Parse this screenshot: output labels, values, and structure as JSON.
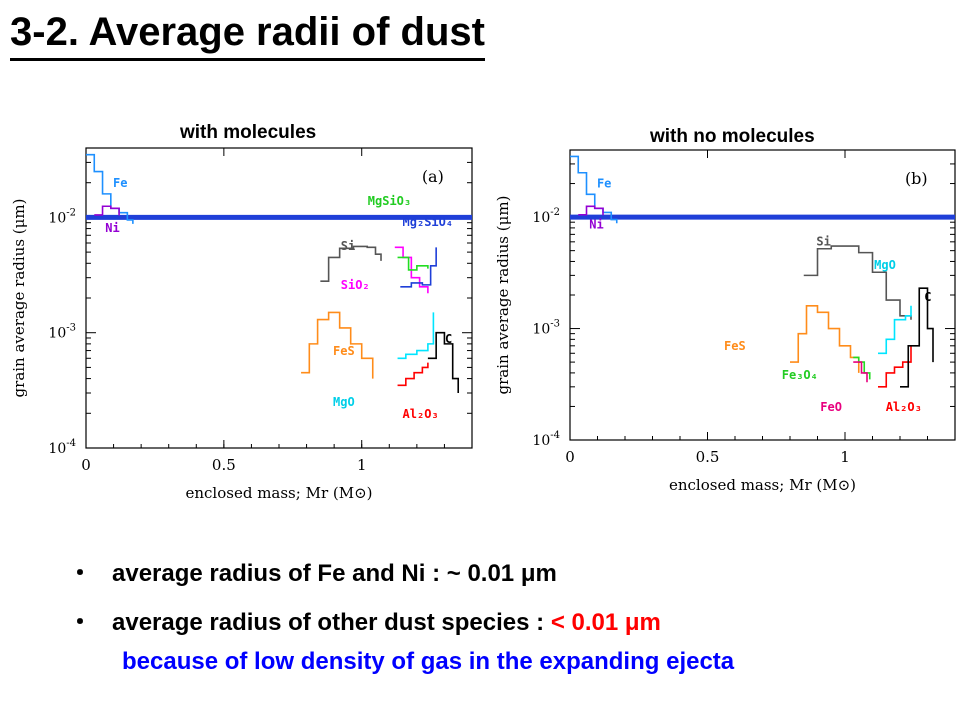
{
  "page": {
    "title": "3-2. Average radii of dust",
    "bullets": [
      {
        "marker": "・",
        "text": "average radius of Fe and Ni : ~ 0.01 μm",
        "highlight": ""
      },
      {
        "marker": "・",
        "text": "average radius of other dust species : ",
        "highlight": "< 0.01 μm"
      }
    ],
    "note": "because of low density of gas in the expanding ejecta"
  },
  "chart_data": [
    {
      "type": "line",
      "panel": "(a)",
      "header": "with molecules",
      "xlabel": "enclosed mass; Mr (M⊙)",
      "ylabel": "grain average radius (μm)",
      "xlim": [
        0,
        1.4
      ],
      "ylim": [
        0.0001,
        0.04
      ],
      "yscale": "log",
      "xticks": [
        "0",
        "0.5",
        "1"
      ],
      "yticks": [
        "10-2",
        "10-3",
        "10-4"
      ],
      "reference_line": {
        "y": 0.01,
        "color": "#1f3fd8"
      },
      "series": [
        {
          "name": "Fe",
          "color": "#1e90ff",
          "x": [
            0.0,
            0.03,
            0.06,
            0.09,
            0.12,
            0.15,
            0.17
          ],
          "y": [
            0.035,
            0.025,
            0.016,
            0.012,
            0.011,
            0.0095,
            0.0088
          ]
        },
        {
          "name": "Ni",
          "color": "#9400d3",
          "x": [
            0.03,
            0.06,
            0.09,
            0.12
          ],
          "y": [
            0.0105,
            0.0125,
            0.012,
            0.0104
          ]
        },
        {
          "name": "Si",
          "color": "#555555",
          "x": [
            0.85,
            0.88,
            0.92,
            0.97,
            1.02,
            1.05,
            1.07
          ],
          "y": [
            0.0028,
            0.0045,
            0.0054,
            0.0056,
            0.0055,
            0.0048,
            0.0042
          ]
        },
        {
          "name": "SiO2",
          "color": "#ff00ff",
          "x": [
            1.12,
            1.15,
            1.18,
            1.21,
            1.24
          ],
          "y": [
            0.0055,
            0.0045,
            0.003,
            0.0025,
            0.0022
          ]
        },
        {
          "name": "MgSiO3",
          "color": "#22dd22",
          "x": [
            1.13,
            1.17,
            1.2,
            1.24
          ],
          "y": [
            0.0045,
            0.0035,
            0.0038,
            0.0036
          ]
        },
        {
          "name": "Mg2SiO4",
          "color": "#1f3fd8",
          "x": [
            1.14,
            1.18,
            1.22,
            1.25,
            1.27
          ],
          "y": [
            0.0025,
            0.0027,
            0.0026,
            0.0038,
            0.0055
          ]
        },
        {
          "name": "FeS",
          "color": "#ff8c1a",
          "x": [
            0.78,
            0.81,
            0.84,
            0.88,
            0.92,
            0.96,
            1.0,
            1.04
          ],
          "y": [
            0.00045,
            0.0008,
            0.0013,
            0.0015,
            0.0011,
            0.0008,
            0.0006,
            0.0004
          ]
        },
        {
          "name": "MgO",
          "color": "#00e5ff",
          "x": [
            1.13,
            1.16,
            1.2,
            1.24,
            1.26
          ],
          "y": [
            0.0006,
            0.00065,
            0.0007,
            0.0008,
            0.0015
          ]
        },
        {
          "name": "Al2O3",
          "color": "#ff0000",
          "x": [
            1.13,
            1.16,
            1.19,
            1.22,
            1.24
          ],
          "y": [
            0.00035,
            0.0004,
            0.00045,
            0.0005,
            0.00055
          ]
        },
        {
          "name": "C",
          "color": "#000000",
          "x": [
            1.24,
            1.27,
            1.3,
            1.33,
            1.35
          ],
          "y": [
            0.0006,
            0.001,
            0.0008,
            0.0004,
            0.0003
          ]
        }
      ],
      "labels": [
        {
          "text": "Fe",
          "color": "#1e90ff"
        },
        {
          "text": "Ni",
          "color": "#9400d3"
        },
        {
          "text": "Si",
          "color": "#555555"
        },
        {
          "text": "SiO₂",
          "color": "#ff00ff"
        },
        {
          "text": "MgSiO₃",
          "color": "#22cc22"
        },
        {
          "text": "Mg₂SiO₄",
          "color": "#1f3fd8"
        },
        {
          "text": "FeS",
          "color": "#ff8c1a"
        },
        {
          "text": "MgO",
          "color": "#00cfe8"
        },
        {
          "text": "Al₂O₃",
          "color": "#ff0000"
        },
        {
          "text": "C",
          "color": "#000000"
        }
      ]
    },
    {
      "type": "line",
      "panel": "(b)",
      "header": "with no molecules",
      "xlabel": "enclosed mass; Mr (M⊙)",
      "ylabel": "grain average radius (μm)",
      "xlim": [
        0,
        1.4
      ],
      "ylim": [
        0.0001,
        0.04
      ],
      "yscale": "log",
      "xticks": [
        "0",
        "0.5",
        "1"
      ],
      "yticks": [
        "10-2",
        "10-3",
        "10-4"
      ],
      "reference_line": {
        "y": 0.01,
        "color": "#1f3fd8"
      },
      "series": [
        {
          "name": "Fe",
          "color": "#1e90ff",
          "x": [
            0.0,
            0.03,
            0.06,
            0.09,
            0.12,
            0.15,
            0.17
          ],
          "y": [
            0.035,
            0.025,
            0.016,
            0.012,
            0.011,
            0.0095,
            0.0088
          ]
        },
        {
          "name": "Ni",
          "color": "#9400d3",
          "x": [
            0.03,
            0.06,
            0.09,
            0.12
          ],
          "y": [
            0.0105,
            0.0125,
            0.012,
            0.0104
          ]
        },
        {
          "name": "Si",
          "color": "#555555",
          "x": [
            0.85,
            0.9,
            0.95,
            1.0,
            1.05,
            1.1,
            1.15,
            1.2,
            1.24
          ],
          "y": [
            0.003,
            0.0052,
            0.0055,
            0.0055,
            0.0048,
            0.0032,
            0.0018,
            0.0013,
            0.0012
          ]
        },
        {
          "name": "MgO",
          "color": "#00e5ff",
          "x": [
            1.12,
            1.15,
            1.18,
            1.22,
            1.24
          ],
          "y": [
            0.0006,
            0.0008,
            0.0012,
            0.0013,
            0.0016
          ]
        },
        {
          "name": "FeS",
          "color": "#ff8c1a",
          "x": [
            0.8,
            0.83,
            0.86,
            0.9,
            0.94,
            0.98,
            1.02,
            1.05
          ],
          "y": [
            0.0005,
            0.0009,
            0.0016,
            0.0014,
            0.001,
            0.0007,
            0.00055,
            0.0004
          ]
        },
        {
          "name": "Fe3O4",
          "color": "#22dd22",
          "x": [
            1.03,
            1.05,
            1.07,
            1.09
          ],
          "y": [
            0.00055,
            0.0005,
            0.0004,
            0.00035
          ]
        },
        {
          "name": "FeO",
          "color": "#e8007f",
          "x": [
            1.03,
            1.06,
            1.08
          ],
          "y": [
            0.0005,
            0.0004,
            0.00033
          ]
        },
        {
          "name": "Al2O3",
          "color": "#ff0000",
          "x": [
            1.12,
            1.15,
            1.18,
            1.21,
            1.24
          ],
          "y": [
            0.0003,
            0.0004,
            0.00045,
            0.0005,
            0.0007
          ]
        },
        {
          "name": "C",
          "color": "#000000",
          "x": [
            1.2,
            1.23,
            1.27,
            1.3,
            1.32
          ],
          "y": [
            0.0003,
            0.0007,
            0.0023,
            0.001,
            0.0005
          ]
        }
      ],
      "labels": [
        {
          "text": "Fe",
          "color": "#1e90ff"
        },
        {
          "text": "Ni",
          "color": "#9400d3"
        },
        {
          "text": "Si",
          "color": "#555555"
        },
        {
          "text": "MgO",
          "color": "#00cfe8"
        },
        {
          "text": "C",
          "color": "#000000"
        },
        {
          "text": "FeS",
          "color": "#ff8c1a"
        },
        {
          "text": "Fe₃O₄",
          "color": "#22cc22"
        },
        {
          "text": "FeO",
          "color": "#e8007f"
        },
        {
          "text": "Al₂O₃",
          "color": "#ff0000"
        }
      ]
    }
  ]
}
